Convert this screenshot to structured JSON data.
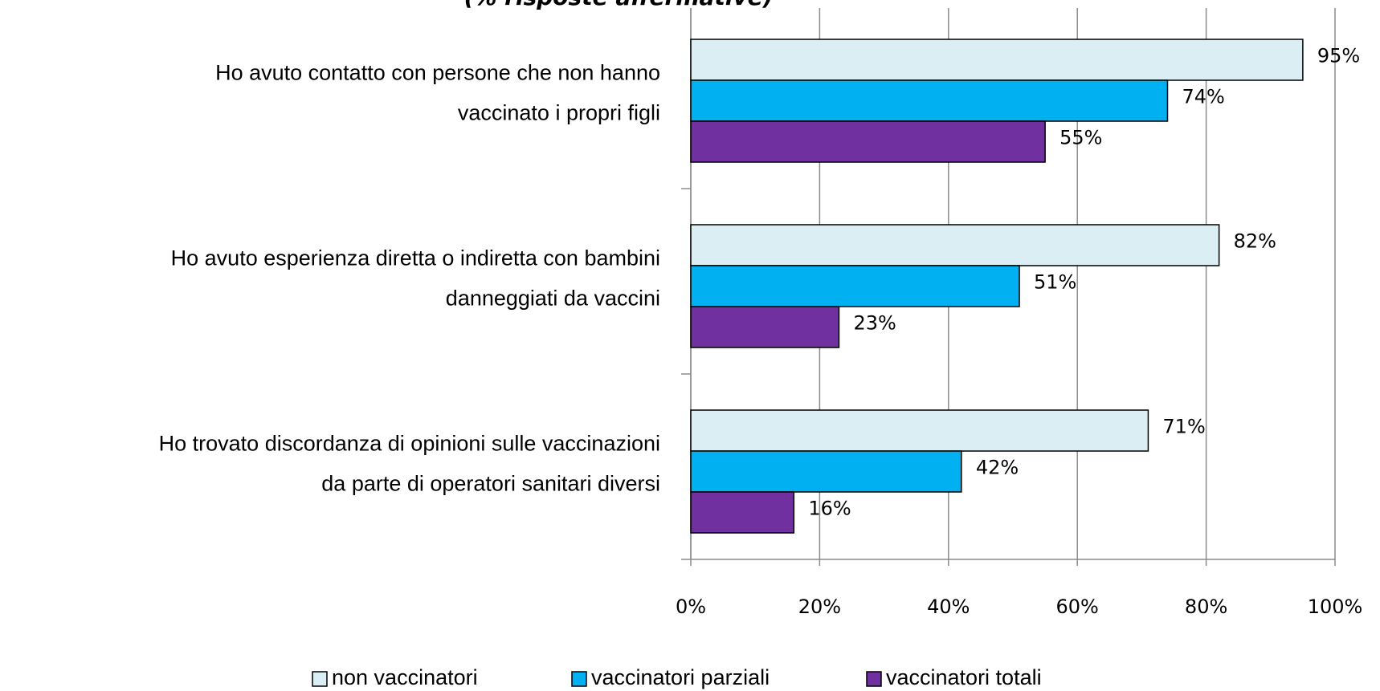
{
  "chart_data": {
    "type": "barh",
    "title": "(% risposte affermative)",
    "categories": [
      "Ho avuto contatto con persone che non hanno\nvaccinato i propri figli",
      "Ho avuto esperienza diretta o indiretta con bambini\ndanneggiati da vaccini",
      "Ho trovato discordanza di opinioni sulle vaccinazioni\nda parte di operatori sanitari diversi"
    ],
    "series": [
      {
        "name": "non vaccinatori",
        "color": "#daeef3",
        "values": [
          95,
          82,
          71
        ],
        "value_labels": [
          "95%",
          "82%",
          "71%"
        ]
      },
      {
        "name": "vaccinatori parziali",
        "color": "#00b0f0",
        "values": [
          74,
          51,
          42
        ],
        "value_labels": [
          "74%",
          "51%",
          "42%"
        ]
      },
      {
        "name": "vaccinatori totali",
        "color": "#7030a0",
        "values": [
          55,
          23,
          16
        ],
        "value_labels": [
          "55%",
          "23%",
          "16%"
        ]
      }
    ],
    "xlim": [
      0,
      100
    ],
    "xticks": [
      {
        "value": 0,
        "label": "0%"
      },
      {
        "value": 20,
        "label": "20%"
      },
      {
        "value": 40,
        "label": "40%"
      },
      {
        "value": 60,
        "label": "60%"
      },
      {
        "value": 80,
        "label": "80%"
      },
      {
        "value": 100,
        "label": "100%"
      }
    ],
    "grid": true,
    "legend": "bottom"
  }
}
